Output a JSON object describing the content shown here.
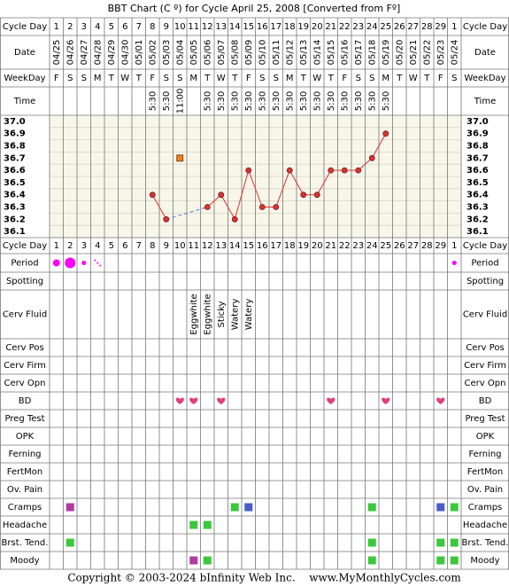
{
  "title": "BBT Chart (C º) for Cycle April 25, 2008  [Converted from Fº]",
  "labels": {
    "cycle_day": "Cycle Day",
    "date": "Date",
    "weekday": "WeekDay",
    "time": "Time"
  },
  "cycle_days": [
    1,
    2,
    3,
    4,
    5,
    6,
    7,
    8,
    9,
    10,
    11,
    12,
    13,
    14,
    15,
    16,
    17,
    18,
    19,
    20,
    21,
    22,
    23,
    24,
    25,
    26,
    27,
    28,
    29,
    1
  ],
  "dates": [
    "04/25",
    "04/26",
    "04/27",
    "04/28",
    "04/29",
    "04/30",
    "05/01",
    "05/02",
    "05/03",
    "05/04",
    "05/05",
    "05/06",
    "05/07",
    "05/08",
    "05/09",
    "05/10",
    "05/11",
    "05/12",
    "05/13",
    "05/14",
    "05/15",
    "05/16",
    "05/17",
    "05/18",
    "05/19",
    "05/20",
    "05/21",
    "05/22",
    "05/23",
    "05/24"
  ],
  "weekdays": [
    "F",
    "S",
    "S",
    "M",
    "T",
    "W",
    "T",
    "F",
    "S",
    "S",
    "M",
    "T",
    "W",
    "T",
    "F",
    "S",
    "S",
    "M",
    "T",
    "W",
    "T",
    "F",
    "S",
    "S",
    "M",
    "T",
    "W",
    "T",
    "F",
    "S"
  ],
  "times": [
    null,
    null,
    null,
    null,
    null,
    null,
    null,
    "5:30",
    "5:30",
    "11:00",
    null,
    "5:30",
    "5:30",
    "5:30",
    "5:30",
    "5:30",
    "5:30",
    "5:30",
    "5:30",
    "5:30",
    "5:30",
    "5:30",
    "5:30",
    "5:30",
    "5:30",
    null,
    null,
    null,
    null,
    null
  ],
  "chart_data": {
    "type": "line",
    "values": [
      null,
      null,
      null,
      null,
      null,
      null,
      null,
      36.4,
      36.2,
      null,
      null,
      36.3,
      36.4,
      36.2,
      36.6,
      36.3,
      36.3,
      36.6,
      36.4,
      36.4,
      36.6,
      36.6,
      36.6,
      36.7,
      36.9,
      null,
      null,
      null,
      null,
      null
    ],
    "discarded": [
      null,
      null,
      null,
      null,
      null,
      null,
      null,
      null,
      null,
      36.7,
      null,
      null,
      null,
      null,
      null,
      null,
      null,
      null,
      null,
      null,
      null,
      null,
      null,
      null,
      null,
      null,
      null,
      null,
      null,
      null
    ],
    "color": "#e03030",
    "discarded_color": "#f08020",
    "ylim": [
      36.05,
      37.05
    ],
    "yticks": [
      {
        "value": 37,
        "label": "37.0"
      },
      36.9,
      36.8,
      36.7,
      36.6,
      36.5,
      36.4,
      36.3,
      36.2,
      36.1
    ]
  },
  "rows": [
    {
      "label": "Period",
      "marks": [
        "medium",
        "heavy",
        "light",
        "spotting",
        null,
        null,
        null,
        null,
        null,
        null,
        null,
        null,
        null,
        null,
        null,
        null,
        null,
        null,
        null,
        null,
        null,
        null,
        null,
        null,
        null,
        null,
        null,
        null,
        null,
        "light"
      ]
    },
    {
      "label": "Spotting",
      "marks": [
        null,
        null,
        null,
        null,
        null,
        null,
        null,
        null,
        null,
        null,
        null,
        null,
        null,
        null,
        null,
        null,
        null,
        null,
        null,
        null,
        null,
        null,
        null,
        null,
        null,
        null,
        null,
        null,
        null,
        null
      ]
    },
    {
      "label": "Cerv Fluid",
      "marks": [
        null,
        null,
        null,
        null,
        null,
        null,
        null,
        null,
        null,
        null,
        "Eggwhite",
        "Eggwhite",
        "Sticky",
        "Watery",
        "Watery",
        null,
        null,
        null,
        null,
        null,
        null,
        null,
        null,
        null,
        null,
        null,
        null,
        null,
        null,
        null
      ]
    },
    {
      "label": "Cerv Pos",
      "marks": [
        null,
        null,
        null,
        null,
        null,
        null,
        null,
        null,
        null,
        null,
        null,
        null,
        null,
        null,
        null,
        null,
        null,
        null,
        null,
        null,
        null,
        null,
        null,
        null,
        null,
        null,
        null,
        null,
        null,
        null
      ]
    },
    {
      "label": "Cerv Firm",
      "marks": [
        null,
        null,
        null,
        null,
        null,
        null,
        null,
        null,
        null,
        null,
        null,
        null,
        null,
        null,
        null,
        null,
        null,
        null,
        null,
        null,
        null,
        null,
        null,
        null,
        null,
        null,
        null,
        null,
        null,
        null
      ]
    },
    {
      "label": "Cerv Opn",
      "marks": [
        null,
        null,
        null,
        null,
        null,
        null,
        null,
        null,
        null,
        null,
        null,
        null,
        null,
        null,
        null,
        null,
        null,
        null,
        null,
        null,
        null,
        null,
        null,
        null,
        null,
        null,
        null,
        null,
        null,
        null
      ]
    },
    {
      "label": "BD",
      "marks": [
        null,
        null,
        null,
        null,
        null,
        null,
        null,
        null,
        null,
        true,
        true,
        null,
        true,
        null,
        null,
        null,
        null,
        null,
        null,
        null,
        true,
        null,
        null,
        null,
        true,
        null,
        null,
        null,
        true,
        null
      ]
    },
    {
      "label": "Preg Test",
      "marks": [
        null,
        null,
        null,
        null,
        null,
        null,
        null,
        null,
        null,
        null,
        null,
        null,
        null,
        null,
        null,
        null,
        null,
        null,
        null,
        null,
        null,
        null,
        null,
        null,
        null,
        null,
        null,
        null,
        null,
        null
      ]
    },
    {
      "label": "OPK",
      "marks": [
        null,
        null,
        null,
        null,
        null,
        null,
        null,
        null,
        null,
        null,
        null,
        null,
        null,
        null,
        null,
        null,
        null,
        null,
        null,
        null,
        null,
        null,
        null,
        null,
        null,
        null,
        null,
        null,
        null,
        null
      ]
    },
    {
      "label": "Ferning",
      "marks": [
        null,
        null,
        null,
        null,
        null,
        null,
        null,
        null,
        null,
        null,
        null,
        null,
        null,
        null,
        null,
        null,
        null,
        null,
        null,
        null,
        null,
        null,
        null,
        null,
        null,
        null,
        null,
        null,
        null,
        null
      ]
    },
    {
      "label": "FertMon",
      "marks": [
        null,
        null,
        null,
        null,
        null,
        null,
        null,
        null,
        null,
        null,
        null,
        null,
        null,
        null,
        null,
        null,
        null,
        null,
        null,
        null,
        null,
        null,
        null,
        null,
        null,
        null,
        null,
        null,
        null,
        null
      ]
    },
    {
      "label": "Ov. Pain",
      "marks": [
        null,
        null,
        null,
        null,
        null,
        null,
        null,
        null,
        null,
        null,
        null,
        null,
        null,
        null,
        null,
        null,
        null,
        null,
        null,
        null,
        null,
        null,
        null,
        null,
        null,
        null,
        null,
        null,
        null,
        null
      ]
    },
    {
      "label": "Cramps",
      "marks": [
        null,
        "#b03aa0",
        null,
        null,
        null,
        null,
        null,
        null,
        null,
        null,
        null,
        null,
        null,
        "#3cc83c",
        "#4a5ec8",
        null,
        null,
        null,
        null,
        null,
        null,
        null,
        null,
        "#3cc83c",
        null,
        null,
        null,
        null,
        "#4a5ec8",
        "#3cc83c"
      ]
    },
    {
      "label": "Headache",
      "marks": [
        null,
        null,
        null,
        null,
        null,
        null,
        null,
        null,
        null,
        null,
        "#3cc83c",
        "#3cc83c",
        null,
        null,
        null,
        null,
        null,
        null,
        null,
        null,
        null,
        null,
        null,
        null,
        null,
        null,
        null,
        null,
        null,
        null
      ]
    },
    {
      "label": "Brst. Tend.",
      "marks": [
        null,
        "#3cc83c",
        null,
        null,
        null,
        null,
        null,
        null,
        null,
        null,
        null,
        null,
        null,
        null,
        null,
        null,
        null,
        null,
        null,
        null,
        null,
        null,
        null,
        "#3cc83c",
        null,
        null,
        null,
        null,
        "#3cc83c",
        "#3cc83c"
      ]
    },
    {
      "label": "Moody",
      "marks": [
        null,
        null,
        null,
        null,
        null,
        null,
        null,
        null,
        null,
        null,
        "#b03aa0",
        "#3cc83c",
        null,
        null,
        null,
        null,
        null,
        null,
        null,
        null,
        null,
        null,
        null,
        "#3cc83c",
        null,
        null,
        null,
        null,
        "#3cc83c",
        "#3cc83c"
      ]
    }
  ],
  "footer": {
    "copyright": "Copyright © 2003-2024 bInfinity Web Inc.",
    "site": "www.MyMonthlyCycles.com"
  }
}
